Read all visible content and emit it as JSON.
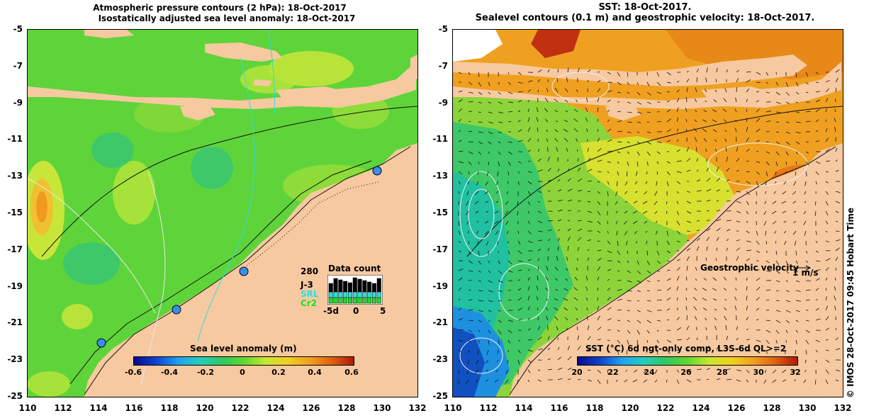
{
  "left_panel": {
    "title_line1": "Atmospheric pressure contours (2 hPa): 18-Oct-2017",
    "title_line2": "Isostatically adjusted sea level anomaly: 18-Oct-2017",
    "colorbar": {
      "title": "Sea level anomaly (m)",
      "ticks": [
        "-0.6",
        "-0.4",
        "-0.2",
        "0",
        "0.2",
        "0.4",
        "0.6"
      ]
    },
    "inset": {
      "count_value": "280",
      "title": "Data count",
      "series": [
        "J-3",
        "SRL",
        "Cr2"
      ],
      "xticks": [
        "-5d",
        "0",
        "5"
      ]
    }
  },
  "right_panel": {
    "title_line1": "SST: 18-Oct-2017.",
    "title_line2": "Sealevel contours (0.1 m) and geostrophic velocity: 18-Oct-2017.",
    "velocity_label": "Geostrophic velocity",
    "velocity_scale": "1 m/s",
    "colorbar": {
      "title": "SST (°C) 6d ngt-only comp, L3S-6d QL>=2",
      "ticks": [
        "20",
        "22",
        "24",
        "26",
        "28",
        "30",
        "32"
      ]
    }
  },
  "axes": {
    "lat_ticks": [
      "-5",
      "-7",
      "-9",
      "-11",
      "-13",
      "-15",
      "-17",
      "-19",
      "-21",
      "-23",
      "-25"
    ],
    "lon_ticks": [
      "110",
      "112",
      "114",
      "116",
      "118",
      "120",
      "122",
      "124",
      "126",
      "128",
      "130",
      "132"
    ]
  },
  "credit": "© IMOS 28-Oct-2017 09:45 Hobart Time",
  "colors": {
    "land": "#f7c9a0",
    "sla_ocean": "#5fd43a",
    "sst_ocean": "#f0a020"
  }
}
